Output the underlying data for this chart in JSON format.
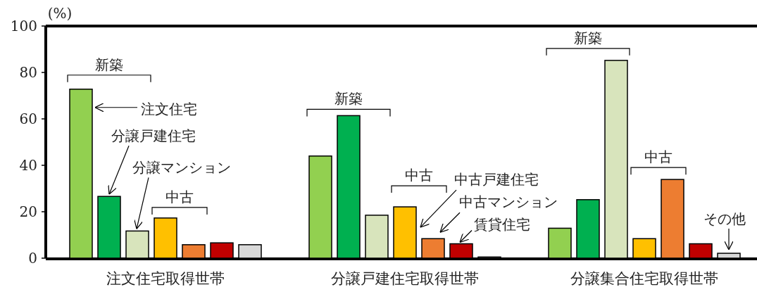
{
  "chart_data": {
    "type": "bar",
    "ylabel": "(%)",
    "categories": [
      "注文住宅取得世帯",
      "分譲戸建住宅取得世帯",
      "分譲集合住宅取得世帯"
    ],
    "ylim": [
      0,
      100
    ],
    "yticks": [
      0,
      20,
      40,
      60,
      80,
      100
    ],
    "legend": "left",
    "series": [
      {
        "name": "注文住宅",
        "color": "#92d050",
        "values": [
          72.8,
          44.0,
          12.9
        ]
      },
      {
        "name": "分譲戸建住宅",
        "color": "#00b050",
        "values": [
          26.6,
          61.4,
          25.2
        ]
      },
      {
        "name": "分譲マンション",
        "color": "#d8e4bc",
        "values": [
          11.7,
          18.5,
          85.2
        ]
      },
      {
        "name": "中古戸建住宅",
        "color": "#ffc000",
        "values": [
          17.3,
          22.1,
          8.4
        ]
      },
      {
        "name": "中古マンション",
        "color": "#ed7d31",
        "values": [
          5.8,
          8.4,
          33.9
        ]
      },
      {
        "name": "賃貸住宅",
        "color": "#c00000",
        "values": [
          6.6,
          6.2,
          6.2
        ]
      },
      {
        "name": "その他",
        "color": "#d9d9d9",
        "values": [
          5.8,
          0.5,
          2.1
        ]
      }
    ],
    "annotations": [
      "新築",
      "中古",
      "新築",
      "中古",
      "新築",
      "中古"
    ]
  }
}
